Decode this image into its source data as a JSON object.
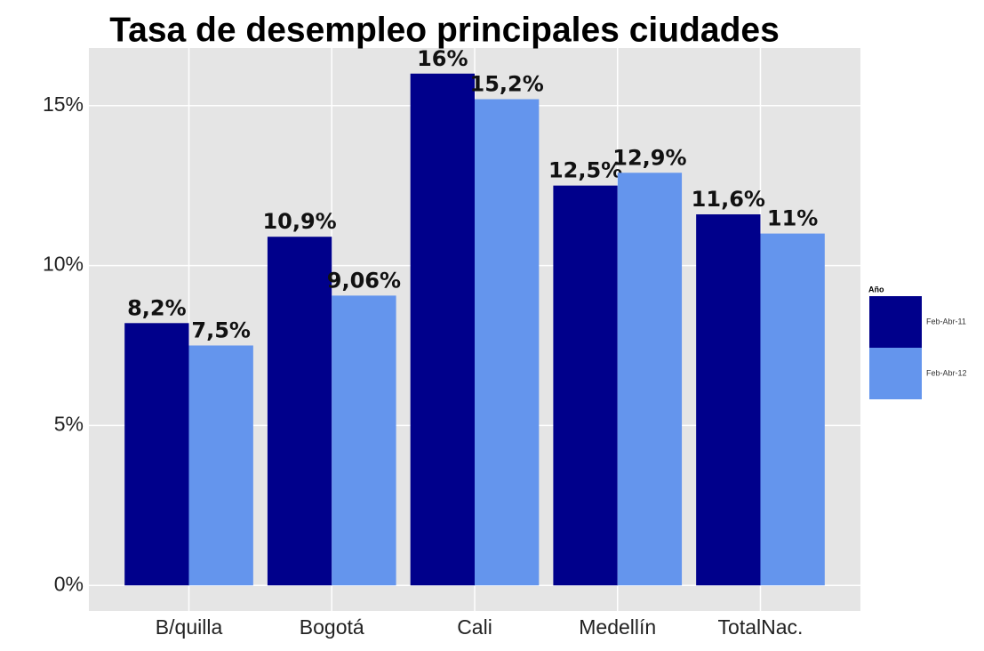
{
  "chart_data": {
    "type": "bar",
    "title": "Tasa de desempleo principales ciudades",
    "categories": [
      "B/quilla",
      "Bogotá",
      "Cali",
      "Medellín",
      "TotalNac."
    ],
    "series": [
      {
        "name": "Feb-Abr-11",
        "color": "#00008b",
        "values": [
          8.2,
          10.9,
          16,
          12.5,
          11.6
        ],
        "value_labels": [
          "8,2%",
          "10,9%",
          "16%",
          "12,5%",
          "11,6%"
        ]
      },
      {
        "name": "Feb-Abr-12",
        "color": "#6495ed",
        "values": [
          7.5,
          9.06,
          15.2,
          12.9,
          11
        ],
        "value_labels": [
          "7,5%",
          "9,06%",
          "15,2%",
          "12,9%",
          "11%"
        ]
      }
    ],
    "legend_title": "Año",
    "legend_position": "right",
    "ylim": [
      -0.8,
      16.8
    ],
    "yticks": [
      {
        "value": 0,
        "label": "0%"
      },
      {
        "value": 5,
        "label": "5%"
      },
      {
        "value": 10,
        "label": "10%"
      },
      {
        "value": 15,
        "label": "15%"
      }
    ],
    "grid": true
  }
}
